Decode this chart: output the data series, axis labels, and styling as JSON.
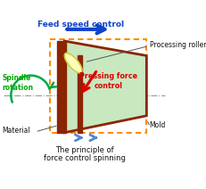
{
  "bg_color": "#ffffff",
  "fig_width": 2.32,
  "fig_height": 2.12,
  "dpi": 100,
  "title_line1": "The principle of",
  "title_line2": "force control spinning",
  "label_feed": "Feed speed control",
  "label_spindle": "Spindle\nrotation",
  "label_roller": "Processing roller",
  "label_pressing": "Pressing force\ncontrol",
  "label_mold": "Mold",
  "label_material": "Material",
  "mold_fill": "#c8e8c0",
  "mold_border": "#8B2500",
  "dotted_border_color": "#FF8C00",
  "roller_fill": "#ffffbb",
  "roller_border": "#cccc44",
  "spindle_arrow_color": "#00aa44",
  "feed_arrow_color": "#1144cc",
  "small_arrows_color": "#5588cc",
  "pressing_arrow_color": "#dd0000",
  "axis_dash_color": "#999999",
  "text_green": "#00aa00",
  "text_blue": "#1144cc",
  "text_red": "#dd0000",
  "text_black": "#111111",
  "leader_color": "#555555"
}
